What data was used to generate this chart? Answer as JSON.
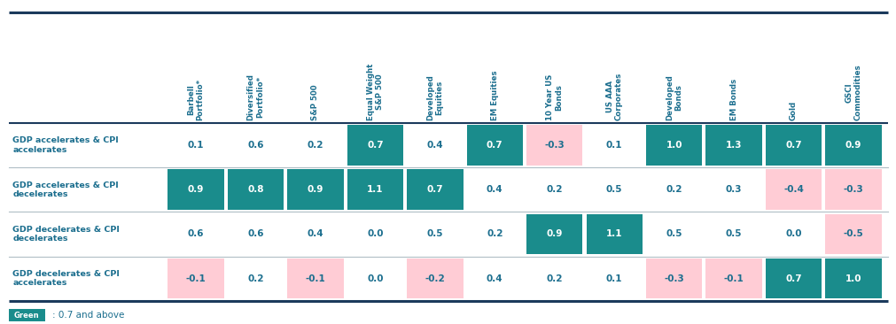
{
  "col_headers": [
    "Barbell\nPortfolio*",
    "Diversified\nPortfolio*",
    "S&P 500",
    "Equal Weight\nS&P 500",
    "Developed\nEquities",
    "EM Equities",
    "10 Year US\nBonds",
    "US AAA\nCorporates",
    "Developed\nBonds",
    "EM Bonds",
    "Gold",
    "GSCI\nCommodities"
  ],
  "row_headers": [
    "GDP accelerates & CPI\naccelerates",
    "GDP accelerates & CPI\ndecelerates",
    "GDP decelerates & CPI\ndecelerates",
    "GDP decelerates & CPI\naccelerates"
  ],
  "values": [
    [
      0.1,
      0.6,
      0.2,
      0.7,
      0.4,
      0.7,
      -0.3,
      0.1,
      1.0,
      1.3,
      0.7,
      0.9
    ],
    [
      0.9,
      0.8,
      0.9,
      1.1,
      0.7,
      0.4,
      0.2,
      0.5,
      0.2,
      0.3,
      -0.4,
      -0.3
    ],
    [
      0.6,
      0.6,
      0.4,
      0.0,
      0.5,
      0.2,
      0.9,
      1.1,
      0.5,
      0.5,
      0.0,
      -0.5
    ],
    [
      -0.1,
      0.2,
      -0.1,
      0.0,
      -0.2,
      0.4,
      0.2,
      0.1,
      -0.3,
      -0.1,
      0.7,
      1.0
    ]
  ],
  "teal_color": "#1A8C8C",
  "teal_text": "#FFFFFF",
  "pink_color": "#FFCCD5",
  "pink_text": "#1B6E8E",
  "white_color": "#FFFFFF",
  "white_text": "#1B6E8E",
  "header_text_color": "#1B6E8E",
  "row_text_color": "#1B6E8E",
  "teal_threshold": 0.7,
  "pink_threshold": 0.0,
  "bg_color": "#FFFFFF",
  "border_color": "#1B3A5C",
  "divider_color": "#B0BEC5",
  "legend_box_color": "#1A8C8C",
  "legend_text": ": 0.7 and above"
}
